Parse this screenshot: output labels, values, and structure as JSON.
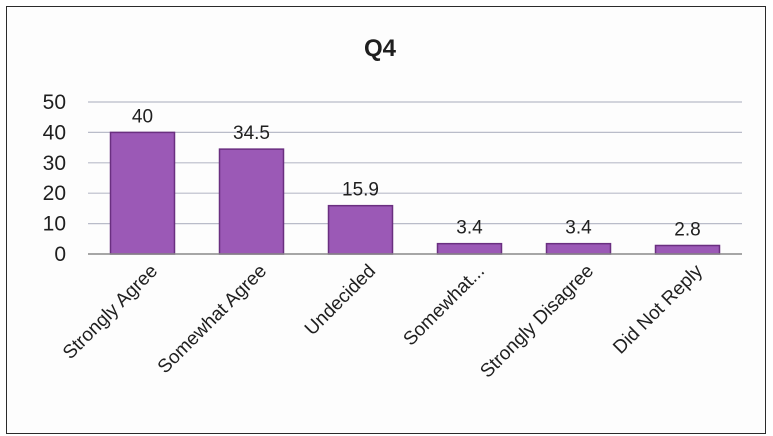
{
  "chart_data": {
    "type": "bar",
    "title": "Q4",
    "xlabel": "",
    "ylabel": "",
    "categories": [
      "Strongly Agree",
      "Somewhat Agree",
      "Undecided",
      "Somewhat...",
      "Strongly Disagree",
      "Did Not Reply"
    ],
    "values": [
      40,
      34.5,
      15.9,
      3.4,
      3.4,
      2.8
    ],
    "data_labels": [
      "40",
      "34.5",
      "15.9",
      "3.4",
      "3.4",
      "2.8"
    ],
    "ylim": [
      0,
      50
    ],
    "yticks": [
      0,
      10,
      20,
      30,
      40,
      50
    ],
    "grid": true,
    "legend": "none",
    "colors": {
      "bar_fill": "#9b59b6",
      "bar_edge": "#6a2f80",
      "grid": "#b9bcc9",
      "axis": "#8a8a8a"
    }
  }
}
